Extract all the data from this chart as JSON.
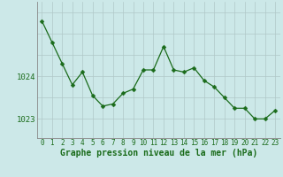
{
  "x": [
    0,
    1,
    2,
    3,
    4,
    5,
    6,
    7,
    8,
    9,
    10,
    11,
    12,
    13,
    14,
    15,
    16,
    17,
    18,
    19,
    20,
    21,
    22,
    23
  ],
  "y": [
    1025.3,
    1024.8,
    1024.3,
    1023.8,
    1024.1,
    1023.55,
    1023.3,
    1023.35,
    1023.6,
    1023.7,
    1024.15,
    1024.15,
    1024.7,
    1024.15,
    1024.1,
    1024.2,
    1023.9,
    1023.75,
    1023.5,
    1023.25,
    1023.25,
    1023.0,
    1023.0,
    1023.2
  ],
  "line_color": "#1a6b1a",
  "marker": "D",
  "marker_size": 2.5,
  "bg_color": "#cce8e8",
  "grid_major_color": "#b0c8c8",
  "grid_minor_color": "#b0c8c8",
  "yticks": [
    1023.0,
    1024.0
  ],
  "ylim": [
    1022.55,
    1025.75
  ],
  "xlim": [
    -0.5,
    23.5
  ],
  "xtick_labels": [
    "0",
    "1",
    "2",
    "3",
    "4",
    "5",
    "6",
    "7",
    "8",
    "9",
    "10",
    "11",
    "12",
    "13",
    "14",
    "15",
    "16",
    "17",
    "18",
    "19",
    "20",
    "21",
    "22",
    "23"
  ],
  "xlabel": "Graphe pression niveau de la mer (hPa)",
  "tick_color": "#1a6b1a",
  "spine_color": "#888888",
  "label_fontsize": 5.5,
  "xlabel_fontsize": 7.0,
  "ytick_fontsize": 6.5
}
